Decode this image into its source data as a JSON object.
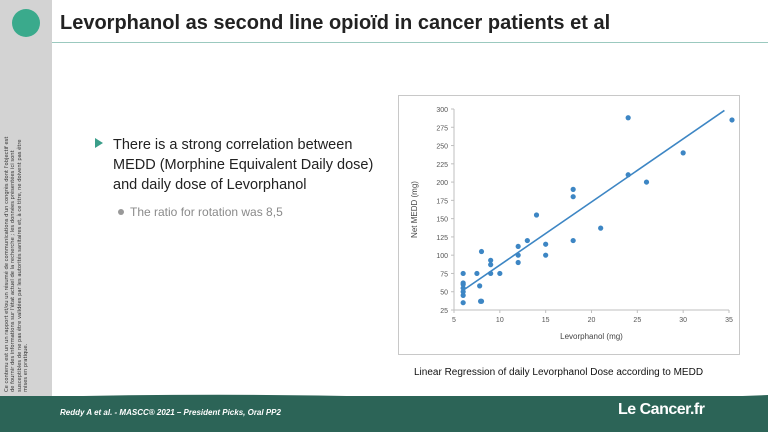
{
  "slide": {
    "title": "Levorphanol as second line opioïd in cancer patients et al",
    "disclaimer": "Ce contenu est un un rapport et/ou un résumé de communications d'un congrès dont l'objectif est de fournir des informations sur l'état actuel de la recherche ; les données présentées ici sont susceptibles de ne pas être validées par les autorités sanitaires et, à ce titre, ne doivent pas être mises en pratique.",
    "bullet": "There is a strong correlation between MEDD (Morphine Equivalent Daily dose) and daily dose of Levorphanol",
    "sub_bullet": "The ratio for rotation was 8,5",
    "caption": "Linear Regression of daily Levorphanol Dose according to MEDD",
    "footer": "Reddy A et al. - MASCC® 2021 – President Picks, Oral PP2",
    "brand": "Le Cancer.fr"
  },
  "colors": {
    "accent": "#3aaa8c",
    "footer": "#2c6457",
    "points": "#3d86c4"
  },
  "chart_data": {
    "type": "scatter",
    "xlabel": "Levorphanol (mg)",
    "ylabel": "Net MEDD (mg)",
    "xlim": [
      5,
      35
    ],
    "ylim": [
      25,
      300
    ],
    "x_ticks": [
      5,
      10,
      15,
      20,
      25,
      30,
      35
    ],
    "y_ticks": [
      25,
      50,
      75,
      100,
      125,
      150,
      175,
      200,
      225,
      250,
      275,
      300
    ],
    "grid": false,
    "points": [
      {
        "x": 6,
        "y": 35
      },
      {
        "x": 6,
        "y": 45
      },
      {
        "x": 6,
        "y": 50
      },
      {
        "x": 6,
        "y": 55
      },
      {
        "x": 6,
        "y": 60
      },
      {
        "x": 6,
        "y": 62
      },
      {
        "x": 6,
        "y": 75
      },
      {
        "x": 7.5,
        "y": 75
      },
      {
        "x": 7.8,
        "y": 58
      },
      {
        "x": 7.9,
        "y": 37
      },
      {
        "x": 8,
        "y": 37
      },
      {
        "x": 8,
        "y": 105
      },
      {
        "x": 9,
        "y": 75
      },
      {
        "x": 9,
        "y": 87
      },
      {
        "x": 9,
        "y": 93
      },
      {
        "x": 10,
        "y": 75
      },
      {
        "x": 12,
        "y": 90
      },
      {
        "x": 12,
        "y": 100
      },
      {
        "x": 12,
        "y": 112
      },
      {
        "x": 13,
        "y": 120
      },
      {
        "x": 14,
        "y": 155
      },
      {
        "x": 15,
        "y": 100
      },
      {
        "x": 15,
        "y": 115
      },
      {
        "x": 18,
        "y": 120
      },
      {
        "x": 18,
        "y": 180
      },
      {
        "x": 18,
        "y": 190
      },
      {
        "x": 21,
        "y": 137
      },
      {
        "x": 24,
        "y": 210
      },
      {
        "x": 24,
        "y": 288
      },
      {
        "x": 26,
        "y": 200
      },
      {
        "x": 30,
        "y": 240
      },
      {
        "x": 36,
        "y": 285
      }
    ],
    "trendline": {
      "x": [
        6,
        34.5
      ],
      "y": [
        52,
        298
      ]
    }
  }
}
